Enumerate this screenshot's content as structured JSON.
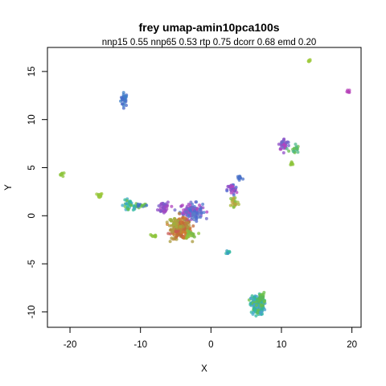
{
  "chart_data": {
    "type": "scatter",
    "title": "frey umap-amin10pca100s",
    "subtitle": "nnp15 0.55 nnp65 0.53 rtp 0.75 dcorr 0.68 emd 0.20",
    "xlabel": "X",
    "ylabel": "Y",
    "xlim": [
      -23.2,
      21.3
    ],
    "ylim": [
      -11.6,
      17.5
    ],
    "xticks": [
      -20,
      -10,
      0,
      10,
      20
    ],
    "yticks": [
      -10,
      -5,
      0,
      5,
      10,
      15
    ],
    "grid": false,
    "legend": "none",
    "clusters": [
      {
        "cx": -12.3,
        "cy": 12.1,
        "sx": 0.25,
        "sy": 0.35,
        "n": 30,
        "colors": [
          "#4a68c8",
          "#3f7fc8"
        ]
      },
      {
        "cx": 14.0,
        "cy": 16.1,
        "sx": 0.1,
        "sy": 0.08,
        "n": 6,
        "colors": [
          "#9fc93c"
        ]
      },
      {
        "cx": 19.5,
        "cy": 12.9,
        "sx": 0.1,
        "sy": 0.1,
        "n": 6,
        "colors": [
          "#b642b8"
        ]
      },
      {
        "cx": -21.1,
        "cy": 4.3,
        "sx": 0.15,
        "sy": 0.1,
        "n": 8,
        "colors": [
          "#8ec43c"
        ]
      },
      {
        "cx": -15.8,
        "cy": 2.1,
        "sx": 0.2,
        "sy": 0.12,
        "n": 12,
        "colors": [
          "#8ec43c",
          "#a0c83c"
        ]
      },
      {
        "cx": -11.5,
        "cy": 1.0,
        "sx": 0.6,
        "sy": 0.3,
        "n": 40,
        "colors": [
          "#2fb8a0",
          "#3ea8c8",
          "#6ac04a"
        ]
      },
      {
        "cx": -9.8,
        "cy": 1.1,
        "sx": 0.35,
        "sy": 0.1,
        "n": 14,
        "colors": [
          "#6ac04a",
          "#3f6fc8"
        ]
      },
      {
        "cx": -8.1,
        "cy": -2.1,
        "sx": 0.2,
        "sy": 0.12,
        "n": 10,
        "colors": [
          "#8ec43c"
        ]
      },
      {
        "cx": -6.7,
        "cy": 0.9,
        "sx": 0.4,
        "sy": 0.35,
        "n": 40,
        "colors": [
          "#8f4fc8",
          "#7a5cc8",
          "#a44ac0"
        ]
      },
      {
        "cx": -2.8,
        "cy": 0.5,
        "sx": 0.8,
        "sy": 0.4,
        "n": 120,
        "colors": [
          "#9b4fc8",
          "#b044c0",
          "#6f69c9",
          "#4f7ad0"
        ]
      },
      {
        "cx": -4.2,
        "cy": -1.4,
        "sx": 0.7,
        "sy": 0.5,
        "n": 220,
        "colors": [
          "#c06a3a",
          "#b88a3a",
          "#c85a50",
          "#a89a3c",
          "#d07a30"
        ]
      },
      {
        "cx": -5.3,
        "cy": -0.7,
        "sx": 0.4,
        "sy": 0.25,
        "n": 30,
        "colors": [
          "#b0a040",
          "#9cb03c"
        ]
      },
      {
        "cx": -3.0,
        "cy": -2.0,
        "sx": 0.4,
        "sy": 0.2,
        "n": 20,
        "colors": [
          "#8ec43c",
          "#7ab848"
        ]
      },
      {
        "cx": -2.3,
        "cy": 0.1,
        "sx": 0.4,
        "sy": 0.3,
        "n": 20,
        "colors": [
          "#5a7cc8",
          "#4f6ad0"
        ]
      },
      {
        "cx": 3.0,
        "cy": 2.7,
        "sx": 0.35,
        "sy": 0.3,
        "n": 30,
        "colors": [
          "#8f4fc8",
          "#4f6ad0",
          "#b044c0"
        ]
      },
      {
        "cx": 4.1,
        "cy": 3.9,
        "sx": 0.25,
        "sy": 0.2,
        "n": 14,
        "colors": [
          "#4a72c8"
        ]
      },
      {
        "cx": 3.3,
        "cy": 1.4,
        "sx": 0.3,
        "sy": 0.35,
        "n": 24,
        "colors": [
          "#a8b83a",
          "#7ec040",
          "#c0a040"
        ]
      },
      {
        "cx": 10.4,
        "cy": 7.4,
        "sx": 0.4,
        "sy": 0.3,
        "n": 36,
        "colors": [
          "#8f4fc8",
          "#b044c0",
          "#6f69c9"
        ]
      },
      {
        "cx": 11.8,
        "cy": 6.9,
        "sx": 0.35,
        "sy": 0.3,
        "n": 18,
        "colors": [
          "#6ac04a",
          "#4fb88a"
        ]
      },
      {
        "cx": 11.5,
        "cy": 5.5,
        "sx": 0.12,
        "sy": 0.12,
        "n": 8,
        "colors": [
          "#8ec43c"
        ]
      },
      {
        "cx": 2.4,
        "cy": -3.8,
        "sx": 0.1,
        "sy": 0.1,
        "n": 8,
        "colors": [
          "#2fb8a0",
          "#3a9ec0"
        ]
      },
      {
        "cx": 6.6,
        "cy": -9.3,
        "sx": 0.45,
        "sy": 0.5,
        "n": 200,
        "colors": [
          "#2fb8a0",
          "#3ea8c8",
          "#34b890",
          "#4ea0d0",
          "#6ac04a"
        ]
      },
      {
        "cx": 7.2,
        "cy": -8.6,
        "sx": 0.2,
        "sy": 0.3,
        "n": 20,
        "colors": [
          "#6ac04a",
          "#5ab85a"
        ]
      }
    ]
  }
}
